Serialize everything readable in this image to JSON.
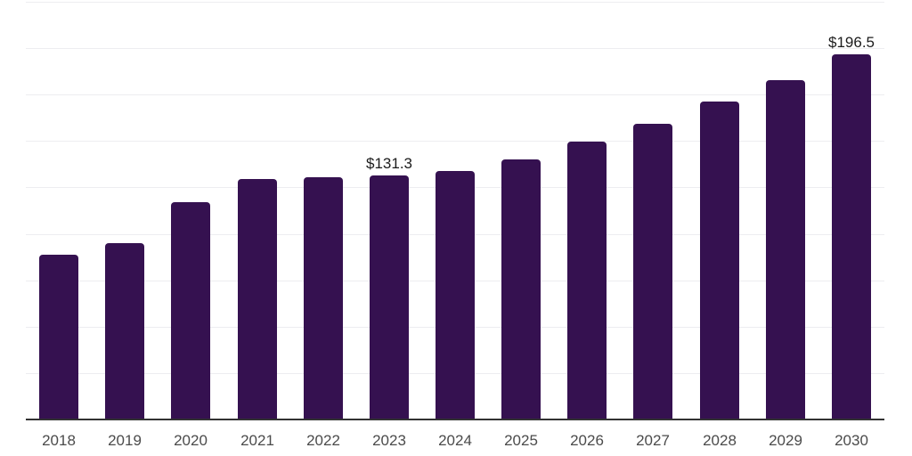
{
  "chart_data": {
    "type": "bar",
    "categories": [
      "2018",
      "2019",
      "2020",
      "2021",
      "2022",
      "2023",
      "2024",
      "2025",
      "2026",
      "2027",
      "2028",
      "2029",
      "2030"
    ],
    "values": [
      88.6,
      94.9,
      116.9,
      129.3,
      130.3,
      131.3,
      133.9,
      140.2,
      149.6,
      159.3,
      171.3,
      183.0,
      196.5
    ],
    "data_labels": {
      "2023": "$131.3",
      "2030": "$196.5"
    },
    "title": "",
    "xlabel": "",
    "ylabel": "",
    "ylim": [
      0,
      225
    ],
    "gridline_step": 25,
    "grid": "horizontal only, no y-axis tick labels, no legend",
    "legend": null,
    "colors": {
      "bar": "#351150",
      "gridline": "#EDEDF0",
      "axis": "#333333",
      "value_label": "#1C1C1C",
      "x_label": "#4B4B4B",
      "background": "#FFFFFF"
    }
  }
}
